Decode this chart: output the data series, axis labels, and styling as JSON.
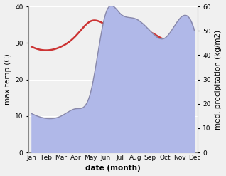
{
  "months": [
    "Jan",
    "Feb",
    "Mar",
    "Apr",
    "May",
    "Jun",
    "Jul",
    "Aug",
    "Sep",
    "Oct",
    "Nov",
    "Dec"
  ],
  "temperature": [
    29,
    28,
    29,
    32,
    36,
    35,
    33,
    33,
    33,
    31,
    32,
    30
  ],
  "precipitation": [
    16,
    14,
    15,
    18,
    25,
    57,
    57,
    55,
    50,
    47,
    55,
    50
  ],
  "temp_color": "#cc3333",
  "precip_fill_color": "#b0b8e8",
  "precip_line_color": "#8888aa",
  "temp_ylim": [
    0,
    40
  ],
  "precip_ylim": [
    0,
    60
  ],
  "xlabel": "date (month)",
  "ylabel_left": "max temp (C)",
  "ylabel_right": "med. precipitation (kg/m2)",
  "bg_color": "#f0f0f0",
  "label_fontsize": 7.5,
  "tick_fontsize": 6.5
}
